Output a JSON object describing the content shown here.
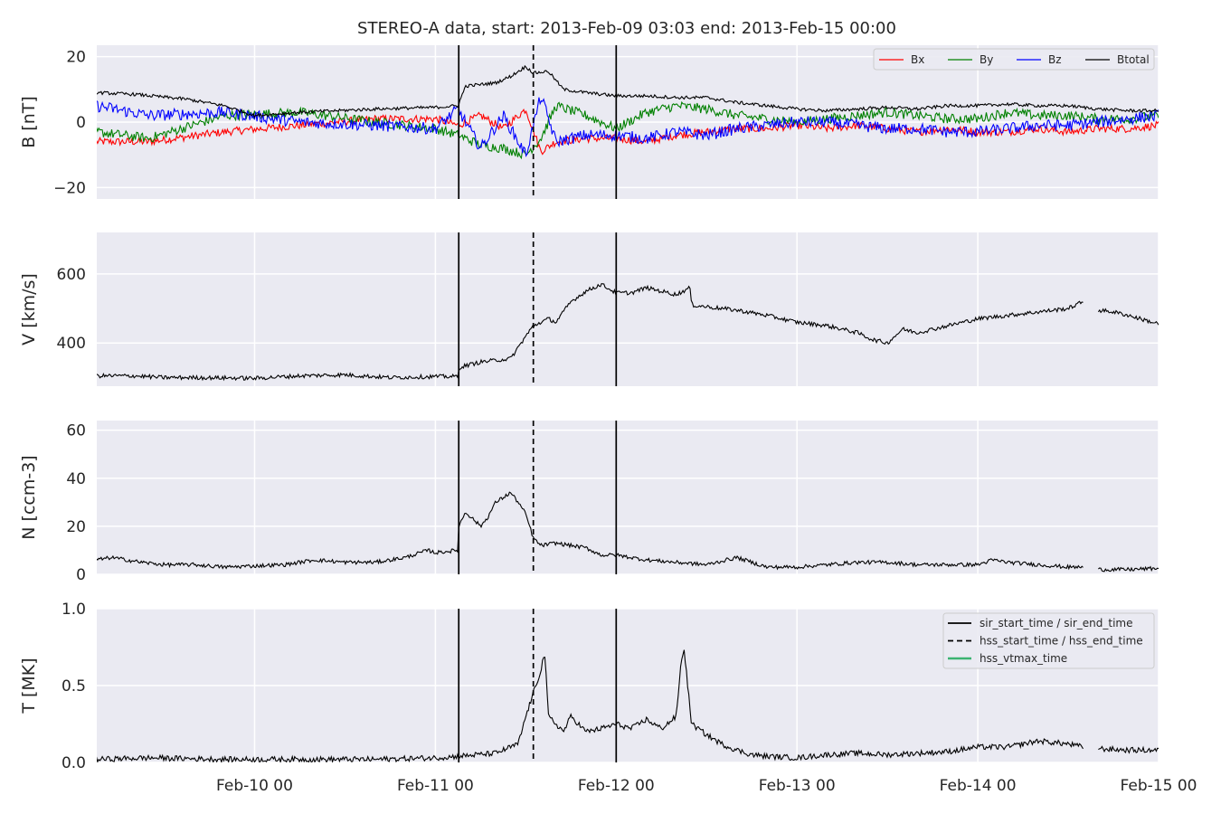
{
  "figure": {
    "title": "STEREO-A data, start: 2013-Feb-09 03:03  end: 2013-Feb-15 00:00"
  },
  "chart_data": {
    "type": "line",
    "x_axis": {
      "unit": "hours since 2013-Feb-09 00:00",
      "xlim": [
        3.05,
        144
      ],
      "ticks": [
        {
          "value": 24,
          "label": "Feb-10 00"
        },
        {
          "value": 48,
          "label": "Feb-11 00"
        },
        {
          "value": 72,
          "label": "Feb-12 00"
        },
        {
          "value": 96,
          "label": "Feb-13 00"
        },
        {
          "value": 120,
          "label": "Feb-14 00"
        },
        {
          "value": 144,
          "label": "Feb-15 00"
        }
      ]
    },
    "event_lines": [
      {
        "name": "sir_start_time / sir_end_time",
        "style": "solid",
        "x": [
          51.1,
          72.0
        ]
      },
      {
        "name": "hss_start_time / hss_end_time",
        "style": "dashed",
        "x": [
          61.0
        ]
      },
      {
        "name": "hss_vtmax_time",
        "style": "solid",
        "color": "#3cb371",
        "x": []
      }
    ],
    "panels": [
      {
        "id": "B",
        "ylabel": "B [nT]",
        "ylim": [
          -23.5,
          23.5
        ],
        "yticks": [
          {
            "value": -20,
            "label": "−20"
          },
          {
            "value": 0,
            "label": "0"
          },
          {
            "value": 20,
            "label": "20"
          }
        ],
        "legend": {
          "position": "top-right",
          "columns": 4
        },
        "series": [
          {
            "name": "Bx",
            "color": "#ff0000",
            "noise": 1.2,
            "x": [
              3,
              10,
              20,
              30,
              40,
              48,
              51,
              54,
              57,
              60,
              62,
              64,
              68,
              72,
              76,
              80,
              84,
              88,
              92,
              96,
              100,
              104,
              108,
              112,
              116,
              120,
              124,
              128,
              132,
              136,
              140,
              144
            ],
            "y": [
              -6,
              -6,
              -3,
              -1,
              1,
              1,
              -1,
              2,
              -2,
              4,
              -9,
              -6,
              -5,
              -5,
              -6,
              -4,
              -3,
              -2,
              -2,
              -1,
              -2,
              -1,
              -2,
              -3,
              -2,
              -3,
              -3,
              -2,
              -3,
              -2,
              -2,
              -1
            ]
          },
          {
            "name": "By",
            "color": "#008000",
            "noise": 1.5,
            "x": [
              3,
              10,
              20,
              30,
              40,
              48,
              51,
              54,
              57,
              60,
              62,
              64,
              68,
              72,
              76,
              80,
              84,
              88,
              92,
              96,
              100,
              104,
              108,
              112,
              116,
              120,
              124,
              128,
              132,
              136,
              140,
              144
            ],
            "y": [
              -3,
              -5,
              2,
              3,
              0,
              -2,
              -4,
              -7,
              -8,
              -10,
              -5,
              5,
              2,
              -2,
              3,
              5,
              4,
              2,
              1,
              0,
              1,
              2,
              3,
              2,
              1,
              1,
              3,
              2,
              2,
              1,
              1,
              2
            ]
          },
          {
            "name": "Bz",
            "color": "#0000ff",
            "noise": 1.8,
            "x": [
              3,
              10,
              20,
              30,
              40,
              48,
              51,
              54,
              57,
              60,
              62,
              64,
              68,
              72,
              76,
              80,
              84,
              88,
              92,
              96,
              100,
              104,
              108,
              112,
              116,
              120,
              124,
              128,
              132,
              136,
              140,
              144
            ],
            "y": [
              5,
              2,
              3,
              0,
              -1,
              -2,
              4,
              -8,
              2,
              -10,
              8,
              -6,
              -4,
              -4,
              -5,
              -3,
              -4,
              -2,
              -1,
              0,
              0,
              -1,
              -2,
              -2,
              -3,
              -3,
              -2,
              -1,
              -1,
              0,
              1,
              2
            ]
          },
          {
            "name": "Btotal",
            "color": "#000000",
            "noise": 0.5,
            "x": [
              3,
              8,
              15,
              20,
              24,
              30,
              40,
              48,
              51,
              52,
              56,
              58,
              60,
              61,
              63,
              65,
              68,
              72,
              76,
              80,
              84,
              88,
              92,
              96,
              100,
              104,
              108,
              112,
              116,
              120,
              124,
              128,
              132,
              136,
              140,
              144
            ],
            "y": [
              9,
              8.5,
              7,
              5,
              2,
              3,
              4,
              4.5,
              5,
              11,
              12,
              14,
              17,
              15,
              15.5,
              10,
              9,
              8,
              8,
              7.5,
              7.5,
              6,
              5,
              4,
              3.5,
              4,
              4.5,
              4,
              5,
              5,
              5.5,
              5,
              5,
              4,
              3.5,
              3.5
            ]
          }
        ]
      },
      {
        "id": "V",
        "ylabel": "V [km/s]",
        "ylim": [
          275,
          720
        ],
        "yticks": [
          {
            "value": 400,
            "label": "400"
          },
          {
            "value": 600,
            "label": "600"
          }
        ],
        "series": [
          {
            "name": "V",
            "color": "#000000",
            "noise": 6,
            "gaps": [
              [
                134,
                136
              ]
            ],
            "x": [
              3,
              8,
              12,
              16,
              24,
              30,
              36,
              42,
              48,
              51,
              51.2,
              54,
              58,
              60,
              61,
              63,
              64,
              66,
              68,
              70,
              72,
              74,
              76,
              78,
              80,
              81.8,
              82,
              84,
              88,
              92,
              96,
              100,
              104,
              106,
              108,
              110,
              112,
              116,
              120,
              124,
              128,
              132,
              134,
              136,
              138,
              140,
              144
            ],
            "y": [
              305,
              305,
              300,
              300,
              298,
              305,
              308,
              300,
              303,
              303,
              330,
              345,
              355,
              420,
              450,
              470,
              460,
              520,
              550,
              570,
              545,
              545,
              560,
              550,
              540,
              560,
              510,
              505,
              495,
              480,
              460,
              450,
              430,
              410,
              400,
              440,
              430,
              450,
              470,
              480,
              490,
              500,
              520,
              495,
              490,
              480,
              455
            ]
          }
        ]
      },
      {
        "id": "N",
        "ylabel": "N [ccm-3]",
        "ylim": [
          0,
          64
        ],
        "yticks": [
          {
            "value": 0,
            "label": "0"
          },
          {
            "value": 20,
            "label": "20"
          },
          {
            "value": 40,
            "label": "40"
          },
          {
            "value": 60,
            "label": "60"
          }
        ],
        "series": [
          {
            "name": "N",
            "color": "#000000",
            "noise": 0.8,
            "gaps": [
              [
                134,
                136
              ]
            ],
            "x": [
              3,
              5,
              7,
              9,
              12,
              16,
              20,
              24,
              28,
              32,
              36,
              40,
              44,
              47,
              48,
              51,
              51.1,
              52,
              54,
              55,
              56,
              57,
              58,
              59,
              60,
              61,
              62,
              64,
              66,
              68,
              70,
              72,
              76,
              80,
              84,
              88,
              92,
              96,
              100,
              104,
              108,
              112,
              116,
              120,
              122,
              124,
              128,
              132,
              134,
              136,
              140,
              144
            ],
            "y": [
              6,
              7,
              6,
              5,
              4,
              4,
              3,
              3.5,
              4,
              6,
              5,
              5,
              7,
              10,
              9,
              10,
              20,
              26,
              20,
              24,
              30,
              32,
              34,
              30,
              25,
              15,
              12,
              13,
              12,
              11,
              8,
              8,
              6,
              5,
              4,
              7,
              3,
              3,
              4,
              5,
              5,
              4,
              4,
              4,
              6,
              5,
              4,
              3,
              3,
              2,
              2,
              2.5
            ]
          }
        ]
      },
      {
        "id": "T",
        "ylabel": "T [MK]",
        "ylim": [
          0,
          1.0
        ],
        "yticks": [
          {
            "value": 0,
            "label": "0.0"
          },
          {
            "value": 0.5,
            "label": "0.5"
          },
          {
            "value": 1.0,
            "label": "1.0"
          }
        ],
        "legend": {
          "position": "top-right",
          "columns": 1
        },
        "series": [
          {
            "name": "T",
            "color": "#000000",
            "noise": 0.018,
            "gaps": [
              [
                134,
                136
              ]
            ],
            "x": [
              3,
              10,
              20,
              30,
              40,
              48,
              51,
              56,
              59,
              60,
              61,
              62,
              62.5,
              63,
              64,
              65,
              66,
              68,
              70,
              72,
              74,
              76,
              78,
              80,
              80.5,
              81,
              82,
              84,
              86,
              88,
              90,
              92,
              96,
              100,
              104,
              108,
              112,
              116,
              120,
              124,
              128,
              132,
              134,
              136,
              140,
              144
            ],
            "y": [
              0.02,
              0.03,
              0.02,
              0.02,
              0.02,
              0.03,
              0.04,
              0.06,
              0.12,
              0.3,
              0.45,
              0.6,
              0.72,
              0.3,
              0.25,
              0.2,
              0.3,
              0.2,
              0.22,
              0.25,
              0.22,
              0.28,
              0.22,
              0.3,
              0.6,
              0.75,
              0.25,
              0.18,
              0.12,
              0.08,
              0.05,
              0.04,
              0.03,
              0.05,
              0.06,
              0.05,
              0.06,
              0.07,
              0.1,
              0.1,
              0.14,
              0.12,
              0.1,
              0.09,
              0.08,
              0.08
            ]
          }
        ]
      }
    ]
  }
}
